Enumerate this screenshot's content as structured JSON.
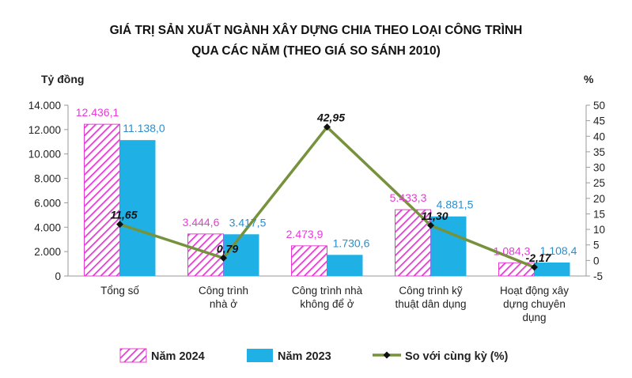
{
  "chart_data": {
    "type": "bar",
    "title_line1": "GIÁ TRỊ SẢN XUẤT NGÀNH XÂY DỰNG CHIA THEO LOẠI CÔNG TRÌNH",
    "title_line2": "QUA CÁC NĂM (THEO GIÁ SO SÁNH 2010)",
    "ylabel_left": "Tỷ đồng",
    "ylabel_right": "%",
    "ylim_left": [
      0,
      14000
    ],
    "ylim_right": [
      -5,
      50
    ],
    "left_ticks": [
      "0",
      "2.000",
      "4.000",
      "6.000",
      "8.000",
      "10.000",
      "12.000",
      "14.000"
    ],
    "right_ticks": [
      "-5",
      "0",
      "5",
      "10",
      "15",
      "20",
      "25",
      "30",
      "35",
      "40",
      "45",
      "50"
    ],
    "categories": [
      [
        "Tổng số"
      ],
      [
        "Công trình",
        "nhà ở"
      ],
      [
        "Công trình nhà",
        "không để ở"
      ],
      [
        "Công trình kỹ",
        "thuật dân dụng"
      ],
      [
        "Hoạt động xây",
        "dựng chuyên",
        "dụng"
      ]
    ],
    "series": [
      {
        "name": "Năm 2024",
        "kind": "bar",
        "color": "#e83bd6",
        "values": [
          12436.1,
          3444.6,
          2473.9,
          5433.3,
          1084.3
        ],
        "labels": [
          "12.436,1",
          "3.444,6",
          "2.473,9",
          "5.433,3",
          "1.084,3"
        ]
      },
      {
        "name": "Năm 2023",
        "kind": "bar",
        "color": "#1fb1e6",
        "values": [
          11138.0,
          3417.5,
          1730.6,
          4881.5,
          1108.4
        ],
        "labels": [
          "11.138,0",
          "3.417,5",
          "1.730,6",
          "4.881,5",
          "1.108,4"
        ]
      },
      {
        "name": "So với cùng kỳ (%)",
        "kind": "line",
        "axis": "right",
        "color": "#76923c",
        "values": [
          11.65,
          0.79,
          42.95,
          11.3,
          -2.17
        ],
        "labels": [
          "11,65",
          "0,79",
          "42,95",
          "11,30",
          "-2,17"
        ]
      }
    ],
    "legend_position": "bottom",
    "grid": false
  }
}
